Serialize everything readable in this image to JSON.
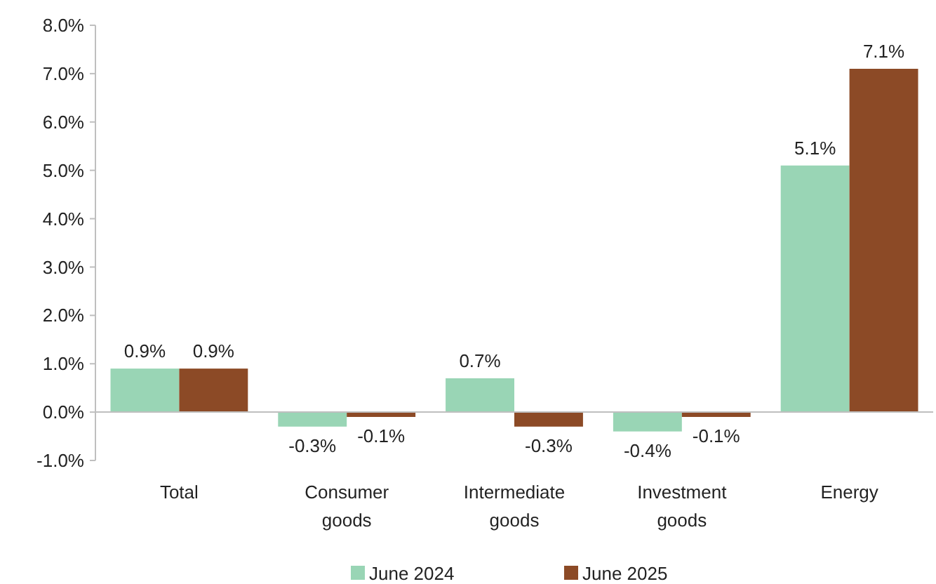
{
  "chart_data": {
    "type": "bar",
    "categories": [
      "Total",
      "Consumer goods",
      "Intermediate goods",
      "Investment goods",
      "Energy"
    ],
    "series": [
      {
        "name": "June 2024",
        "color": "#99d5b5",
        "values": [
          0.9,
          -0.3,
          0.7,
          -0.4,
          5.1
        ]
      },
      {
        "name": "June 2025",
        "color": "#8c4a26",
        "values": [
          0.9,
          -0.1,
          -0.3,
          -0.1,
          7.1
        ]
      }
    ],
    "ylim": [
      -1,
      8
    ],
    "yticks": [
      {
        "value": -1,
        "label": "-1.0%"
      },
      {
        "value": 0,
        "label": "0.0%"
      },
      {
        "value": 1,
        "label": "1.0%"
      },
      {
        "value": 2,
        "label": "2.0%"
      },
      {
        "value": 3,
        "label": "3.0%"
      },
      {
        "value": 4,
        "label": "4.0%"
      },
      {
        "value": 5,
        "label": "5.0%"
      },
      {
        "value": 6,
        "label": "6.0%"
      },
      {
        "value": 7,
        "label": "7.0%"
      },
      {
        "value": 8,
        "label": "8.0%"
      }
    ],
    "value_labels": [
      [
        "0.9%",
        "-0.3%",
        "0.7%",
        "-0.4%",
        "5.1%"
      ],
      [
        "0.9%",
        "-0.1%",
        "-0.3%",
        "-0.1%",
        "7.1%"
      ]
    ],
    "legend": "bottom"
  }
}
